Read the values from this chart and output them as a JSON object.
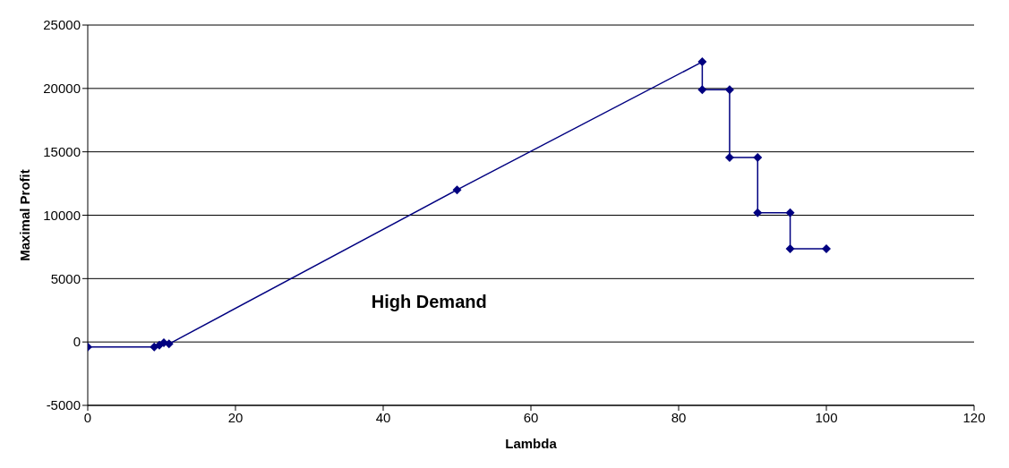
{
  "chart_data": {
    "type": "line",
    "xlabel": "Lambda",
    "ylabel": "Maximal Profit",
    "annotations": [
      "High Demand"
    ],
    "series": [
      {
        "color": "#000080",
        "x": [
          0,
          9,
          9.7,
          10.3,
          11,
          50,
          83.2,
          83.2,
          86.9,
          86.9,
          90.7,
          90.7,
          95.1,
          95.1,
          100
        ],
        "values": [
          -400,
          -400,
          -250,
          -50,
          -150,
          12000,
          22100,
          19900,
          19900,
          14550,
          14550,
          10200,
          10200,
          7350,
          7350
        ]
      }
    ],
    "xlim": [
      0,
      120
    ],
    "xticks": [
      0,
      20,
      40,
      60,
      80,
      100,
      120
    ],
    "ylim": [
      -5000,
      25000
    ],
    "yticks": [
      -5000,
      0,
      5000,
      10000,
      15000,
      20000,
      25000
    ],
    "grid": "y",
    "marker": "diamond",
    "line_style": "solid"
  }
}
